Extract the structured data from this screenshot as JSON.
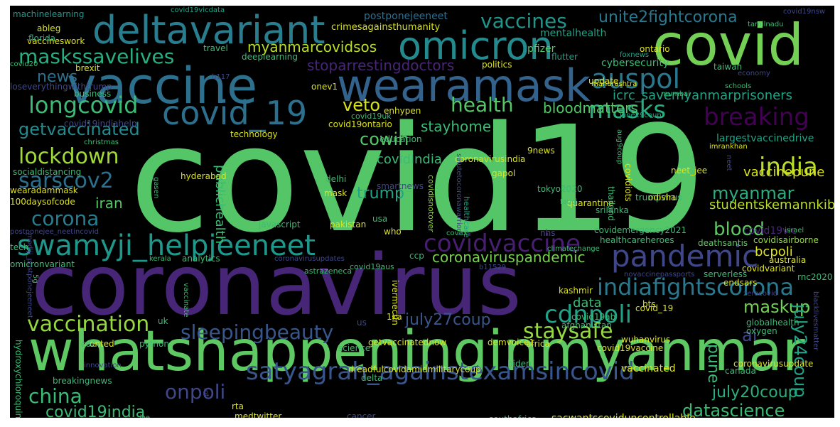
{
  "words": [
    {
      "text": "covid19",
      "color": "#55c667"
    },
    {
      "text": "coronavirus",
      "color": "#482677"
    },
    {
      "text": "whatshappeninginmyanmar",
      "color": "#5ec962"
    },
    {
      "text": "vaccine",
      "color": "#2d708e"
    },
    {
      "text": "wearamask",
      "color": "#33638d"
    },
    {
      "text": "covid",
      "color": "#73d055"
    },
    {
      "text": "omicron",
      "color": "#238a8d"
    },
    {
      "text": "deltavariant",
      "color": "#287d8e"
    },
    {
      "text": "pandemic",
      "color": "#3f4788"
    },
    {
      "text": "swamyji_helpjeeneet",
      "color": "#1f988b"
    },
    {
      "text": "satyagrah_againstexamsincovid",
      "color": "#39568c"
    },
    {
      "text": "covid_19",
      "color": "#2d708e"
    },
    {
      "text": "auspol",
      "color": "#2a788e"
    },
    {
      "text": "masks",
      "color": "#29af7f"
    },
    {
      "text": "breaking",
      "color": "#440154"
    },
    {
      "text": "india",
      "color": "#b8de29"
    },
    {
      "text": "indiafightscorona",
      "color": "#2a788e"
    },
    {
      "text": "cdnpoli",
      "color": "#20a386"
    },
    {
      "text": "covidvaccine",
      "color": "#481f70"
    },
    {
      "text": "vaccination",
      "color": "#95d840"
    },
    {
      "text": "sleepingbeauty",
      "color": "#39568c"
    },
    {
      "text": "staysafe",
      "color": "#95d840"
    },
    {
      "text": "lockdown",
      "color": "#a0da39"
    },
    {
      "text": "sarscov2",
      "color": "#2d708e"
    },
    {
      "text": "longcovid",
      "color": "#3cbb75"
    },
    {
      "text": "maskssavelives",
      "color": "#29af7f"
    },
    {
      "text": "vaccines",
      "color": "#1f968b"
    },
    {
      "text": "unite2fightcorona",
      "color": "#2a788e"
    },
    {
      "text": "myanmarcovidsos",
      "color": "#b8de29"
    },
    {
      "text": "stoparrestingdoctors",
      "color": "#482677"
    },
    {
      "text": "getvaccinated",
      "color": "#238a8d"
    },
    {
      "text": "health",
      "color": "#55c667"
    },
    {
      "text": "veto",
      "color": "#d8e219"
    },
    {
      "text": "bloodmatters",
      "color": "#55c667"
    },
    {
      "text": "icrc_savemyanmarprisoners",
      "color": "#20a386"
    },
    {
      "text": "corona",
      "color": "#287d8e"
    },
    {
      "text": "myanmar",
      "color": "#29af7f"
    },
    {
      "text": "blood",
      "color": "#5ec962"
    },
    {
      "text": "coronaviruspandemic",
      "color": "#7ad151"
    },
    {
      "text": "china",
      "color": "#3cbb75"
    },
    {
      "text": "onpoli",
      "color": "#404788"
    },
    {
      "text": "covid19india",
      "color": "#3cbb75"
    },
    {
      "text": "july27coup",
      "color": "#39568c"
    },
    {
      "text": "july20coup",
      "color": "#29af7f"
    },
    {
      "text": "datascience",
      "color": "#3cbb75"
    },
    {
      "text": "maskup",
      "color": "#73d055"
    },
    {
      "text": "july24coup",
      "color": "#20a386"
    },
    {
      "text": "cowin",
      "color": "#55c667"
    },
    {
      "text": "stayhome",
      "color": "#3cbb75"
    },
    {
      "text": "trump",
      "color": "#20a386"
    },
    {
      "text": "news",
      "color": "#2d708e"
    },
    {
      "text": "iran",
      "color": "#55c667"
    },
    {
      "text": "ai",
      "color": "#404788"
    },
    {
      "text": "pune",
      "color": "#3cbb75"
    },
    {
      "text": "data",
      "color": "#3cbb75"
    },
    {
      "text": "vaccinepune",
      "color": "#d8e219"
    },
    {
      "text": "studentskemannkibaat",
      "color": "#b8de29"
    },
    {
      "text": "publichealth",
      "color": "#3cbb75"
    },
    {
      "text": "bcpoli",
      "color": "#dce319"
    },
    {
      "text": "covidindia",
      "color": "#3cbb75"
    },
    {
      "text": "covid19ontario",
      "color": "#dce319"
    },
    {
      "text": "covidisnotover",
      "color": "#95d840"
    },
    {
      "text": "healthcare",
      "color": "#20a386"
    },
    {
      "text": "coronavirusindia",
      "color": "#d8e219"
    },
    {
      "text": "largestvaccinedrive",
      "color": "#20a386"
    },
    {
      "text": "covid19vic",
      "color": "#482677"
    },
    {
      "text": "covidemergency2021",
      "color": "#3cbb75"
    },
    {
      "text": "healthcareheroes",
      "color": "#3cbb75"
    },
    {
      "text": "deathsantis",
      "color": "#5ec962"
    },
    {
      "text": "covidisairborne",
      "color": "#95d840"
    },
    {
      "text": "postponejeeneet",
      "color": "#2d708e"
    },
    {
      "text": "crimesagainsthumanity",
      "color": "#d8e219"
    },
    {
      "text": "machinelearning",
      "color": "#1f988b"
    },
    {
      "text": "covid19vicdata",
      "color": "#20a386"
    },
    {
      "text": "covid19nsw",
      "color": "#404788"
    },
    {
      "text": "vaccineswork",
      "color": "#dce319"
    },
    {
      "text": "brexit",
      "color": "#dce319"
    },
    {
      "text": "covid20",
      "color": "#3cbb75"
    },
    {
      "text": "ableg",
      "color": "#dce319"
    },
    {
      "text": "florida",
      "color": "#29af7f"
    },
    {
      "text": "travel",
      "color": "#3cbb75"
    },
    {
      "text": "deeplearning",
      "color": "#3cbb75"
    },
    {
      "text": "pfizer",
      "color": "#55c667"
    },
    {
      "text": "flutter",
      "color": "#20a386"
    },
    {
      "text": "ontario",
      "color": "#dce319"
    },
    {
      "text": "foxnews",
      "color": "#20a386"
    },
    {
      "text": "taiwan",
      "color": "#3cbb75"
    },
    {
      "text": "mentalhealth",
      "color": "#20a386"
    },
    {
      "text": "cybersecurity",
      "color": "#3cbb75"
    },
    {
      "text": "politics",
      "color": "#dce319"
    },
    {
      "text": "economy",
      "color": "#3f4788"
    },
    {
      "text": "tamilnadu",
      "color": "#3cbb75"
    },
    {
      "text": "loseverythingwithtrump",
      "color": "#404788"
    },
    {
      "text": "business",
      "color": "#3cbb75"
    },
    {
      "text": "b117",
      "color": "#404788"
    },
    {
      "text": "onev1",
      "color": "#dce319"
    },
    {
      "text": "update",
      "color": "#dce319"
    },
    {
      "text": "maharashtra",
      "color": "#dce319"
    },
    {
      "text": "mumbai",
      "color": "#3cbb75"
    },
    {
      "text": "schools",
      "color": "#3cbb75"
    },
    {
      "text": "enhypen",
      "color": "#dce319"
    },
    {
      "text": "covid19uk",
      "color": "#3cbb75"
    },
    {
      "text": "june29coup",
      "color": "#20a386"
    },
    {
      "text": "technology",
      "color": "#dce319"
    },
    {
      "text": "education",
      "color": "#3cbb75"
    },
    {
      "text": "covid19indiahelp",
      "color": "#404788"
    },
    {
      "text": "christmas",
      "color": "#3cbb75"
    },
    {
      "text": "socialdistancing",
      "color": "#3cbb75"
    },
    {
      "text": "hyderabad",
      "color": "#dce319"
    },
    {
      "text": "wearadammask",
      "color": "#dce319"
    },
    {
      "text": "100daysofcode",
      "color": "#dce319"
    },
    {
      "text": "postponejee_neetincovid",
      "color": "#404788"
    },
    {
      "text": "javascript",
      "color": "#3cbb75"
    },
    {
      "text": "pakistan",
      "color": "#dce319"
    },
    {
      "text": "usa",
      "color": "#3cbb75"
    },
    {
      "text": "who",
      "color": "#dce319"
    },
    {
      "text": "delhi",
      "color": "#3cbb75"
    },
    {
      "text": "mask",
      "color": "#dce319"
    },
    {
      "text": "smartnews",
      "color": "#404788"
    },
    {
      "text": "gapol",
      "color": "#dce319"
    },
    {
      "text": "9news",
      "color": "#dce319"
    },
    {
      "text": "neet_jee",
      "color": "#dce319"
    },
    {
      "text": "tokyo2020",
      "color": "#3cbb75"
    },
    {
      "text": "quarantine",
      "color": "#dce319"
    },
    {
      "text": "trumpvirus",
      "color": "#3cbb75"
    },
    {
      "text": "srilanka",
      "color": "#3cbb75"
    },
    {
      "text": "odisha",
      "color": "#dce319"
    },
    {
      "text": "imrankhan",
      "color": "#dce319"
    },
    {
      "text": "nhs",
      "color": "#404788"
    },
    {
      "text": "fauci",
      "color": "#3cbb75"
    },
    {
      "text": "climatechange",
      "color": "#3cbb75"
    },
    {
      "text": "covax",
      "color": "#3cbb75"
    },
    {
      "text": "israel",
      "color": "#3cbb75"
    },
    {
      "text": "tech",
      "color": "#3cbb75"
    },
    {
      "text": "coronavirusupdates",
      "color": "#404788"
    },
    {
      "text": "omicronvariant",
      "color": "#3cbb75"
    },
    {
      "text": "kerala",
      "color": "#3cbb75"
    },
    {
      "text": "analytics",
      "color": "#3cbb75"
    },
    {
      "text": "astrazeneca",
      "color": "#3cbb75"
    },
    {
      "text": "covid19aus",
      "color": "#3cbb75"
    },
    {
      "text": "ccp",
      "color": "#3cbb75"
    },
    {
      "text": "b11529",
      "color": "#404788"
    },
    {
      "text": "australia",
      "color": "#dce319"
    },
    {
      "text": "novaccinepassports",
      "color": "#404788"
    },
    {
      "text": "serverless",
      "color": "#3cbb75"
    },
    {
      "text": "endsars",
      "color": "#dce319"
    },
    {
      "text": "rnc2020",
      "color": "#3cbb75"
    },
    {
      "text": "covidvariant",
      "color": "#dce319"
    },
    {
      "text": "kashmir",
      "color": "#dce319"
    },
    {
      "text": "zerocovid",
      "color": "#404788"
    },
    {
      "text": "bts",
      "color": "#dce319"
    },
    {
      "text": "covid_19",
      "color": "#dce319"
    },
    {
      "text": "covid19ab",
      "color": "#3cbb75"
    },
    {
      "text": "afghanistan",
      "color": "#3cbb75"
    },
    {
      "text": "globalhealth",
      "color": "#3cbb75"
    },
    {
      "text": "oxygen",
      "color": "#3cbb75"
    },
    {
      "text": "wuhanvirus",
      "color": "#dce319"
    },
    {
      "text": "covid19vaccine",
      "color": "#dce319"
    },
    {
      "text": "uk",
      "color": "#3cbb75"
    },
    {
      "text": "onted",
      "color": "#dce319"
    },
    {
      "text": "cdc",
      "color": "#3cbb75"
    },
    {
      "text": "python",
      "color": "#3cbb75"
    },
    {
      "text": "science",
      "color": "#3cbb75"
    },
    {
      "text": "getvaccinatednow",
      "color": "#dce319"
    },
    {
      "text": "demvoice1",
      "color": "#dce319"
    },
    {
      "text": "africa",
      "color": "#dce319"
    },
    {
      "text": "us",
      "color": "#404788"
    },
    {
      "text": "1ka",
      "color": "#dce319"
    },
    {
      "text": "innovation",
      "color": "#404788"
    },
    {
      "text": "breakingnews",
      "color": "#3cbb75"
    },
    {
      "text": "dreadfulcovidamidmilitarycoup",
      "color": "#dce319"
    },
    {
      "text": "delta",
      "color": "#3cbb75"
    },
    {
      "text": "biden",
      "color": "#3cbb75"
    },
    {
      "text": "vaccinated",
      "color": "#dce319"
    },
    {
      "text": "canada",
      "color": "#3cbb75"
    },
    {
      "text": "coronavirusupdate",
      "color": "#dce319"
    },
    {
      "text": "rta",
      "color": "#dce319"
    },
    {
      "text": "medtwitter",
      "color": "#dce319"
    },
    {
      "text": "cancer",
      "color": "#404788"
    },
    {
      "text": "southafrica",
      "color": "#3cbb75"
    },
    {
      "text": "sacwantscoviduncontrollable",
      "color": "#dce319"
    },
    {
      "text": "jee",
      "color": "#3cbb75"
    },
    {
      "text": "iot",
      "color": "#404788"
    },
    {
      "text": "hydroxychloroquine",
      "color": "#3cbb75"
    },
    {
      "text": "modiji_postponejeeneet",
      "color": "#404788"
    },
    {
      "text": "5g",
      "color": "#3cbb75"
    },
    {
      "text": "vaccinate",
      "color": "#3cbb75"
    },
    {
      "text": "ivermectin",
      "color": "#dce319"
    },
    {
      "text": "gasen",
      "color": "#3cbb75"
    },
    {
      "text": "thailand",
      "color": "#3cbb75"
    },
    {
      "text": "covidiots",
      "color": "#dce319"
    },
    {
      "text": "aug9coup",
      "color": "#3cbb75"
    },
    {
      "text": "neet",
      "color": "#404788"
    },
    {
      "text": "salutetocoronawarriors",
      "color": "#404788"
    },
    {
      "text": "blacklivesmatter",
      "color": "#404788"
    }
  ]
}
